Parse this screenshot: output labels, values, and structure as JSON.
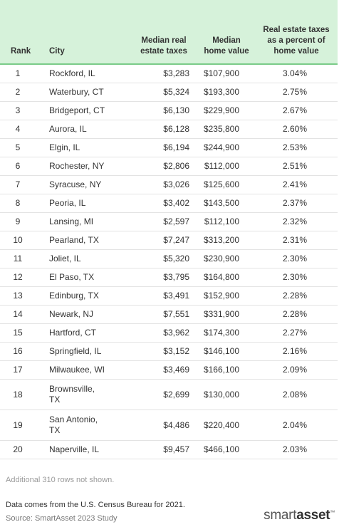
{
  "table": {
    "headers": {
      "rank": "Rank",
      "city": "City",
      "tax": "Median real estate taxes",
      "home": "Median home value",
      "pct": "Real estate taxes as a percent of home value"
    },
    "rows": [
      {
        "rank": "1",
        "city": "Rockford, IL",
        "tax": "$3,283",
        "home": "$107,900",
        "pct": "3.04%"
      },
      {
        "rank": "2",
        "city": "Waterbury, CT",
        "tax": "$5,324",
        "home": "$193,300",
        "pct": "2.75%"
      },
      {
        "rank": "3",
        "city": "Bridgeport, CT",
        "tax": "$6,130",
        "home": "$229,900",
        "pct": "2.67%"
      },
      {
        "rank": "4",
        "city": "Aurora, IL",
        "tax": "$6,128",
        "home": "$235,800",
        "pct": "2.60%"
      },
      {
        "rank": "5",
        "city": "Elgin, IL",
        "tax": "$6,194",
        "home": "$244,900",
        "pct": "2.53%"
      },
      {
        "rank": "6",
        "city": "Rochester, NY",
        "tax": "$2,806",
        "home": "$112,000",
        "pct": "2.51%"
      },
      {
        "rank": "7",
        "city": "Syracuse, NY",
        "tax": "$3,026",
        "home": "$125,600",
        "pct": "2.41%"
      },
      {
        "rank": "8",
        "city": "Peoria, IL",
        "tax": "$3,402",
        "home": "$143,500",
        "pct": "2.37%"
      },
      {
        "rank": "9",
        "city": "Lansing, MI",
        "tax": "$2,597",
        "home": "$112,100",
        "pct": "2.32%"
      },
      {
        "rank": "10",
        "city": "Pearland, TX",
        "tax": "$7,247",
        "home": "$313,200",
        "pct": "2.31%"
      },
      {
        "rank": "11",
        "city": "Joliet, IL",
        "tax": "$5,320",
        "home": "$230,900",
        "pct": "2.30%"
      },
      {
        "rank": "12",
        "city": "El Paso, TX",
        "tax": "$3,795",
        "home": "$164,800",
        "pct": "2.30%"
      },
      {
        "rank": "13",
        "city": "Edinburg, TX",
        "tax": "$3,491",
        "home": "$152,900",
        "pct": "2.28%"
      },
      {
        "rank": "14",
        "city": "Newark, NJ",
        "tax": "$7,551",
        "home": "$331,900",
        "pct": "2.28%"
      },
      {
        "rank": "15",
        "city": "Hartford, CT",
        "tax": "$3,962",
        "home": "$174,300",
        "pct": "2.27%"
      },
      {
        "rank": "16",
        "city": "Springfield, IL",
        "tax": "$3,152",
        "home": "$146,100",
        "pct": "2.16%"
      },
      {
        "rank": "17",
        "city": "Milwaukee, WI",
        "tax": "$3,469",
        "home": "$166,100",
        "pct": "2.09%"
      },
      {
        "rank": "18",
        "city": "Brownsville, TX",
        "tax": "$2,699",
        "home": "$130,000",
        "pct": "2.08%"
      },
      {
        "rank": "19",
        "city": "San Antonio, TX",
        "tax": "$4,486",
        "home": "$220,400",
        "pct": "2.04%"
      },
      {
        "rank": "20",
        "city": "Naperville, IL",
        "tax": "$9,457",
        "home": "$466,100",
        "pct": "2.03%"
      }
    ]
  },
  "footer": {
    "rows_note": "Additional 310 rows not shown.",
    "source": "Data comes from the U.S. Census Bureau for 2021.",
    "study": "Source: SmartAsset 2023 Study",
    "logo": {
      "part1": "smart",
      "part2": "asset",
      "mark": "™"
    }
  },
  "colors": {
    "header_bg": "#d6f2da",
    "header_rule": "#7acb88",
    "row_rule": "#e3e3e3"
  }
}
